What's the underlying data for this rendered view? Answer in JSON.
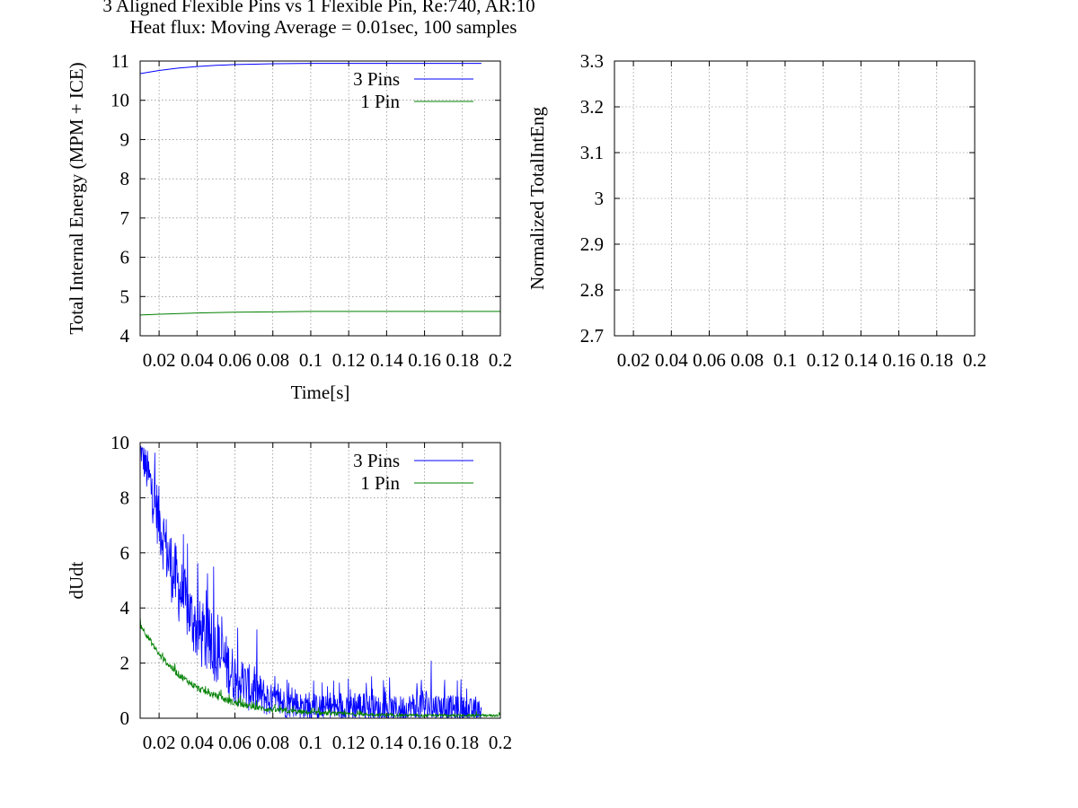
{
  "figure": {
    "title": "3 Aligned Flexible Pins vs 1 Flexible Pin, Re:740, AR:10",
    "subtitle": "Heat flux: Moving Average = 0.01sec, 100 samples"
  },
  "chart_data": [
    {
      "type": "line",
      "ylabel": "Total Internal Energy (MPM + ICE)",
      "xlabel": "Time[s]",
      "xlim": [
        0.01,
        0.2
      ],
      "ylim": [
        4,
        11
      ],
      "xticks": [
        0.02,
        0.04,
        0.06,
        0.08,
        0.1,
        0.12,
        0.14,
        0.16,
        0.18,
        0.2
      ],
      "xtick_labels": [
        "0.02",
        "0.04",
        "0.06",
        "0.08",
        "0.1",
        "0.12",
        "0.14",
        "0.16",
        "0.18",
        "0.2"
      ],
      "yticks": [
        4,
        5,
        6,
        7,
        8,
        9,
        10,
        11
      ],
      "ytick_labels": [
        "4",
        "5",
        "6",
        "7",
        "8",
        "9",
        "10",
        "11"
      ],
      "grid": true,
      "legend_position": "top-right",
      "series": [
        {
          "name": "3 Pins",
          "color": "#0000ff",
          "x": [
            0.01,
            0.02,
            0.03,
            0.04,
            0.05,
            0.06,
            0.07,
            0.08,
            0.1,
            0.12,
            0.14,
            0.16,
            0.18,
            0.19
          ],
          "y": [
            10.68,
            10.76,
            10.82,
            10.86,
            10.89,
            10.91,
            10.92,
            10.93,
            10.94,
            10.94,
            10.94,
            10.94,
            10.94,
            10.94
          ]
        },
        {
          "name": "1 Pin",
          "color": "#008000",
          "x": [
            0.01,
            0.02,
            0.04,
            0.06,
            0.08,
            0.1,
            0.12,
            0.14,
            0.16,
            0.18,
            0.2
          ],
          "y": [
            4.53,
            4.55,
            4.58,
            4.6,
            4.61,
            4.62,
            4.62,
            4.62,
            4.62,
            4.62,
            4.62
          ]
        }
      ]
    },
    {
      "type": "line",
      "ylabel": "Normalized TotalIntEng",
      "xlabel": "",
      "xlim": [
        0.01,
        0.2
      ],
      "ylim": [
        2.7,
        3.3
      ],
      "xticks": [
        0.02,
        0.04,
        0.06,
        0.08,
        0.1,
        0.12,
        0.14,
        0.16,
        0.18,
        0.2
      ],
      "xtick_labels": [
        "0.02",
        "0.04",
        "0.06",
        "0.08",
        "0.1",
        "0.12",
        "0.14",
        "0.16",
        "0.18",
        "0.2"
      ],
      "yticks": [
        2.7,
        2.8,
        2.9,
        3.0,
        3.1,
        3.2,
        3.3
      ],
      "ytick_labels": [
        "2.7",
        "2.8",
        "2.9",
        "3",
        "3.1",
        "3.2",
        "3.3"
      ],
      "grid": true,
      "series": []
    },
    {
      "type": "line",
      "ylabel": "dUdt",
      "xlabel": "",
      "xlim": [
        0.01,
        0.2
      ],
      "ylim": [
        0,
        10
      ],
      "xticks": [
        0.02,
        0.04,
        0.06,
        0.08,
        0.1,
        0.12,
        0.14,
        0.16,
        0.18,
        0.2
      ],
      "xtick_labels": [
        "0.02",
        "0.04",
        "0.06",
        "0.08",
        "0.1",
        "0.12",
        "0.14",
        "0.16",
        "0.18",
        "0.2"
      ],
      "yticks": [
        0,
        2,
        4,
        6,
        8,
        10
      ],
      "ytick_labels": [
        "0",
        "2",
        "4",
        "6",
        "8",
        "10"
      ],
      "grid": true,
      "legend_position": "top-right",
      "series": [
        {
          "name": "3 Pins",
          "color": "#0000ff",
          "noisy": true,
          "x": [
            0.01,
            0.015,
            0.02,
            0.025,
            0.03,
            0.035,
            0.04,
            0.045,
            0.05,
            0.055,
            0.06,
            0.065,
            0.07,
            0.075,
            0.08,
            0.09,
            0.1,
            0.11,
            0.12,
            0.13,
            0.14,
            0.15,
            0.16,
            0.17,
            0.18,
            0.19
          ],
          "y": [
            9.8,
            8.6,
            7.2,
            5.8,
            4.8,
            4.0,
            3.2,
            2.8,
            2.5,
            2.0,
            1.5,
            1.2,
            1.0,
            0.8,
            0.6,
            0.5,
            0.4,
            0.35,
            0.45,
            0.4,
            0.3,
            0.35,
            0.45,
            0.35,
            0.3,
            0.25
          ],
          "spread": [
            0.4,
            1.0,
            1.2,
            1.3,
            1.3,
            1.2,
            1.2,
            1.3,
            1.2,
            1.1,
            1.0,
            0.9,
            0.8,
            0.7,
            0.6,
            0.5,
            0.5,
            0.45,
            0.7,
            0.5,
            0.45,
            0.5,
            0.7,
            0.5,
            0.5,
            0.4
          ]
        },
        {
          "name": "1 Pin",
          "color": "#008000",
          "noisy": true,
          "x": [
            0.01,
            0.02,
            0.03,
            0.04,
            0.05,
            0.06,
            0.07,
            0.08,
            0.1,
            0.12,
            0.14,
            0.16,
            0.18,
            0.2
          ],
          "y": [
            3.4,
            2.3,
            1.6,
            1.1,
            0.8,
            0.55,
            0.4,
            0.3,
            0.2,
            0.15,
            0.12,
            0.1,
            0.1,
            0.1
          ],
          "spread": [
            0.1,
            0.12,
            0.12,
            0.12,
            0.12,
            0.12,
            0.1,
            0.1,
            0.08,
            0.07,
            0.06,
            0.05,
            0.05,
            0.05
          ]
        }
      ]
    }
  ]
}
